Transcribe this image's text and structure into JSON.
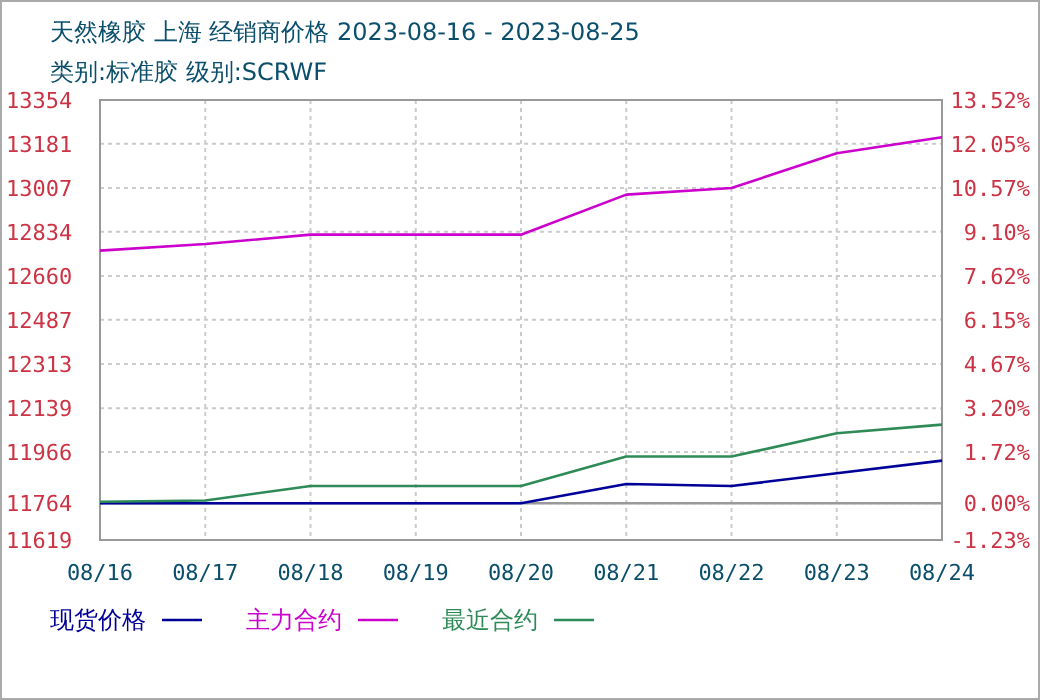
{
  "chart_data": {
    "type": "line",
    "title": "天然橡胶 上海 经销商价格 2023-08-16 - 2023-08-25",
    "subtitle": "类别:标准胶 级别:SCRWF",
    "categories": [
      "08/16",
      "08/17",
      "08/18",
      "08/19",
      "08/20",
      "08/21",
      "08/22",
      "08/23",
      "08/24"
    ],
    "series": [
      {
        "name": "现货价格",
        "color": "#000099",
        "values": [
          11764,
          11764,
          11764,
          11764,
          11764,
          11840,
          11832,
          11882,
          11932
        ]
      },
      {
        "name": "主力合约",
        "color": "#cc00cc",
        "values": [
          12760,
          12786,
          12823,
          12823,
          12823,
          12981,
          13007,
          13144,
          13207
        ]
      },
      {
        "name": "最近合约",
        "color": "#2e8b57",
        "values": [
          11770,
          11775,
          11832,
          11832,
          11832,
          11948,
          11948,
          12040,
          12074
        ]
      }
    ],
    "ylim": [
      11619,
      13354
    ],
    "yticks": [
      13354,
      13181,
      13007,
      12834,
      12660,
      12487,
      12313,
      12139,
      11966,
      11764,
      11619
    ],
    "y2lim": [
      -1.23,
      13.52
    ],
    "y2ticks": [
      {
        "value": 13.52,
        "label": "13.52%"
      },
      {
        "value": 12.05,
        "label": "12.05%"
      },
      {
        "value": 10.57,
        "label": "10.57%"
      },
      {
        "value": 9.1,
        "label": "9.10%"
      },
      {
        "value": 7.62,
        "label": "7.62%"
      },
      {
        "value": 6.15,
        "label": "6.15%"
      },
      {
        "value": 4.67,
        "label": "4.67%"
      },
      {
        "value": 3.2,
        "label": "3.20%"
      },
      {
        "value": 1.72,
        "label": "1.72%"
      },
      {
        "value": 0,
        "label": "0.00%"
      },
      {
        "value": -1.23,
        "label": "-1.23%"
      }
    ],
    "ref_lines": [
      {
        "axis": "y",
        "value": 11764,
        "color": "#999999"
      }
    ],
    "grid": true,
    "legend": "bottom"
  }
}
